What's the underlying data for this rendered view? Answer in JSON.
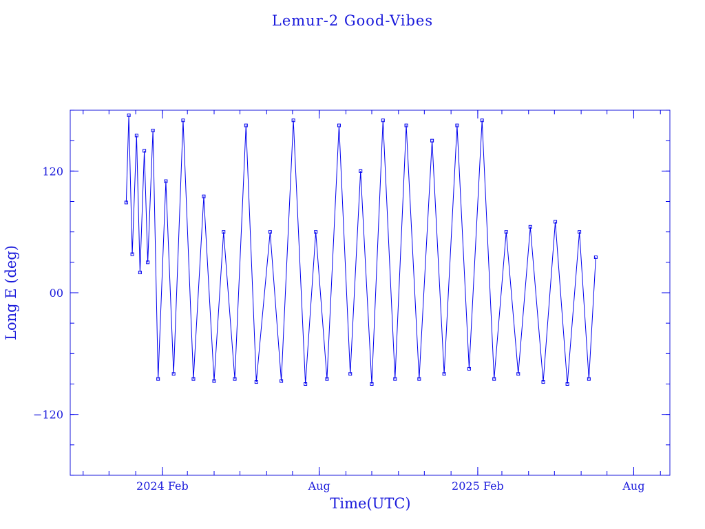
{
  "chart_data": {
    "type": "scatter",
    "title": "Lemur-2 Good-Vibes",
    "xlabel": "Time(UTC)",
    "ylabel": "Long E (deg)",
    "color": "#0000ee",
    "markers": "square",
    "connected": true,
    "grid": false,
    "x_range": [
      "2023-10-17",
      "2025-09-12"
    ],
    "ylim": [
      -180,
      180
    ],
    "x_ticks": [
      {
        "date": "2024-02-01",
        "label": "2024 Feb"
      },
      {
        "date": "2024-08-01",
        "label": "Aug"
      },
      {
        "date": "2025-02-01",
        "label": "2025 Feb"
      },
      {
        "date": "2025-08-01",
        "label": "Aug"
      }
    ],
    "y_ticks": [
      {
        "value": 120,
        "label": "120"
      },
      {
        "value": 0,
        "label": "00"
      },
      {
        "value": -120,
        "label": "−120"
      }
    ],
    "data_start": "2023-12-20",
    "data_end": "2025-06-20",
    "series": [
      {
        "points": [
          [
            "2023-12-21",
            89
          ],
          [
            "2023-12-24",
            175
          ],
          [
            "2023-12-28",
            38
          ],
          [
            "2024-01-02",
            155
          ],
          [
            "2024-01-06",
            20
          ],
          [
            "2024-01-11",
            140
          ],
          [
            "2024-01-15",
            30
          ],
          [
            "2024-01-21",
            160
          ],
          [
            "2024-01-27",
            -85
          ],
          [
            "2024-02-05",
            110
          ],
          [
            "2024-02-14",
            -80
          ],
          [
            "2024-02-25",
            170
          ],
          [
            "2024-03-08",
            -85
          ],
          [
            "2024-03-20",
            95
          ],
          [
            "2024-04-01",
            -87
          ],
          [
            "2024-04-12",
            60
          ],
          [
            "2024-04-25",
            -85
          ],
          [
            "2024-05-08",
            165
          ],
          [
            "2024-05-20",
            -88
          ],
          [
            "2024-06-05",
            60
          ],
          [
            "2024-06-18",
            -87
          ],
          [
            "2024-07-02",
            170
          ],
          [
            "2024-07-16",
            -90
          ],
          [
            "2024-07-28",
            60
          ],
          [
            "2024-08-10",
            -85
          ],
          [
            "2024-08-24",
            165
          ],
          [
            "2024-09-06",
            -80
          ],
          [
            "2024-09-18",
            120
          ],
          [
            "2024-10-01",
            -90
          ],
          [
            "2024-10-14",
            170
          ],
          [
            "2024-10-28",
            -85
          ],
          [
            "2024-11-10",
            165
          ],
          [
            "2024-11-25",
            -85
          ],
          [
            "2024-12-10",
            150
          ],
          [
            "2024-12-24",
            -80
          ],
          [
            "2025-01-08",
            165
          ],
          [
            "2025-01-22",
            -75
          ],
          [
            "2025-02-06",
            170
          ],
          [
            "2025-02-20",
            -85
          ],
          [
            "2025-03-06",
            60
          ],
          [
            "2025-03-20",
            -80
          ],
          [
            "2025-04-03",
            65
          ],
          [
            "2025-04-18",
            -88
          ],
          [
            "2025-05-02",
            70
          ],
          [
            "2025-05-16",
            -90
          ],
          [
            "2025-05-30",
            60
          ],
          [
            "2025-06-10",
            -85
          ],
          [
            "2025-06-18",
            35
          ]
        ]
      }
    ]
  }
}
